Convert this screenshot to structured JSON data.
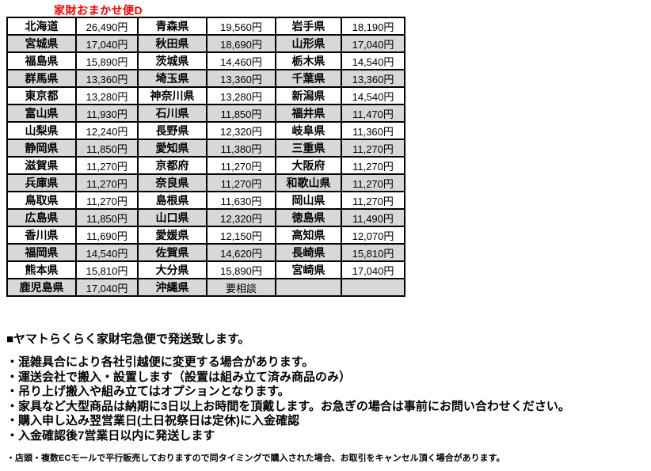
{
  "title": "家財おまかせ便D",
  "colors": {
    "title_red": "#ff0000",
    "row_shade": "#d8d8d8",
    "border": "#000000"
  },
  "table": {
    "rows": [
      [
        "北海道",
        "26,490円",
        "青森県",
        "19,560円",
        "岩手県",
        "18,190円"
      ],
      [
        "宮城県",
        "17,040円",
        "秋田県",
        "18,690円",
        "山形県",
        "17,040円"
      ],
      [
        "福島県",
        "15,890円",
        "茨城県",
        "14,460円",
        "栃木県",
        "14,540円"
      ],
      [
        "群馬県",
        "13,360円",
        "埼玉県",
        "13,360円",
        "千葉県",
        "13,360円"
      ],
      [
        "東京都",
        "13,280円",
        "神奈川県",
        "13,280円",
        "新潟県",
        "14,540円"
      ],
      [
        "富山県",
        "11,930円",
        "石川県",
        "11,850円",
        "福井県",
        "11,470円"
      ],
      [
        "山梨県",
        "12,240円",
        "長野県",
        "12,320円",
        "岐阜県",
        "11,360円"
      ],
      [
        "静岡県",
        "11,850円",
        "愛知県",
        "11,380円",
        "三重県",
        "11,270円"
      ],
      [
        "滋賀県",
        "11,270円",
        "京都府",
        "11,270円",
        "大阪府",
        "11,270円"
      ],
      [
        "兵庫県",
        "11,270円",
        "奈良県",
        "11,270円",
        "和歌山県",
        "11,270円"
      ],
      [
        "鳥取県",
        "11,270円",
        "島根県",
        "11,630円",
        "岡山県",
        "11,270円"
      ],
      [
        "広島県",
        "11,850円",
        "山口県",
        "12,320円",
        "徳島県",
        "11,490円"
      ],
      [
        "香川県",
        "11,690円",
        "愛媛県",
        "12,150円",
        "高知県",
        "12,070円"
      ],
      [
        "福岡県",
        "14,540円",
        "佐賀県",
        "14,620円",
        "長崎県",
        "15,810円"
      ],
      [
        "熊本県",
        "15,810円",
        "大分県",
        "15,890円",
        "宮崎県",
        "17,040円"
      ],
      [
        "鹿児島県",
        "17,040円",
        "沖縄県",
        "要相談",
        "",
        ""
      ]
    ]
  },
  "notes": {
    "heading": "■ヤマトらくらく家財宅急便で発送致します。",
    "bullets": [
      "・混雑具合により各社引越便に変更する場合があります。",
      "・運送会社で搬入・設置します（設置は組み立て済み商品のみ）",
      "・吊り上げ搬入や組み立てはオプションとなります。",
      "・家具など大型商品は納期に3日以上お時間を頂戴します。お急ぎの場合は事前にお問い合わせください。",
      "・購入申し込み翌営業日(土日祝祭日は定休)に入金確認",
      "・入金確認後7営業日以内に発送します"
    ],
    "fine_print": "・店頭・複数ECモールで平行販売しておりますので同タイミングで購入された場合、お取引をキャンセル頂く場合があります。"
  }
}
